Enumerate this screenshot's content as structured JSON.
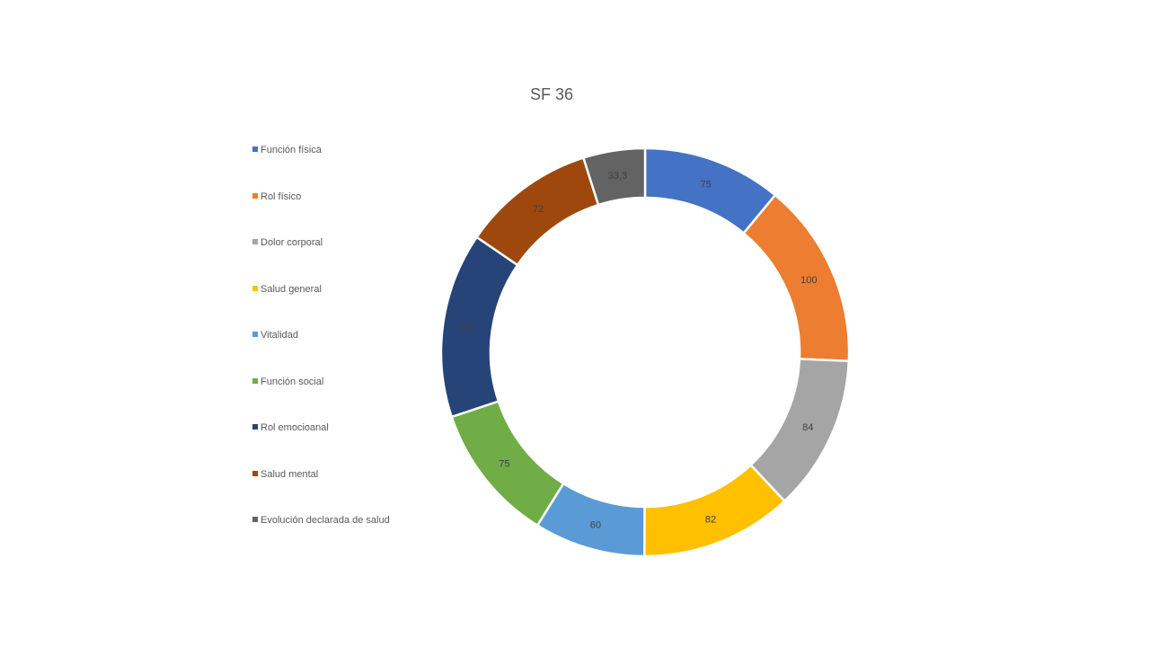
{
  "chart_data": {
    "type": "pie",
    "title": "SF 36",
    "style": "donut",
    "legend_position": "left",
    "categories": [
      "Función física",
      "Rol físico",
      "Dolor corporal",
      "Salud general",
      "Vitalidad",
      "Función social",
      "Rol emocioanal",
      "Salud mental",
      "Evolución declarada de salud"
    ],
    "values": [
      75,
      100,
      84,
      82,
      60,
      75,
      100,
      72,
      33.3
    ],
    "value_labels": [
      "75",
      "100",
      "84",
      "82",
      "60",
      "75",
      "100",
      "72",
      "33,3"
    ],
    "colors": [
      "#4472C4",
      "#ED7D31",
      "#A5A5A5",
      "#FFC000",
      "#5B9BD5",
      "#70AD47",
      "#264478",
      "#9E480E",
      "#636363"
    ]
  }
}
